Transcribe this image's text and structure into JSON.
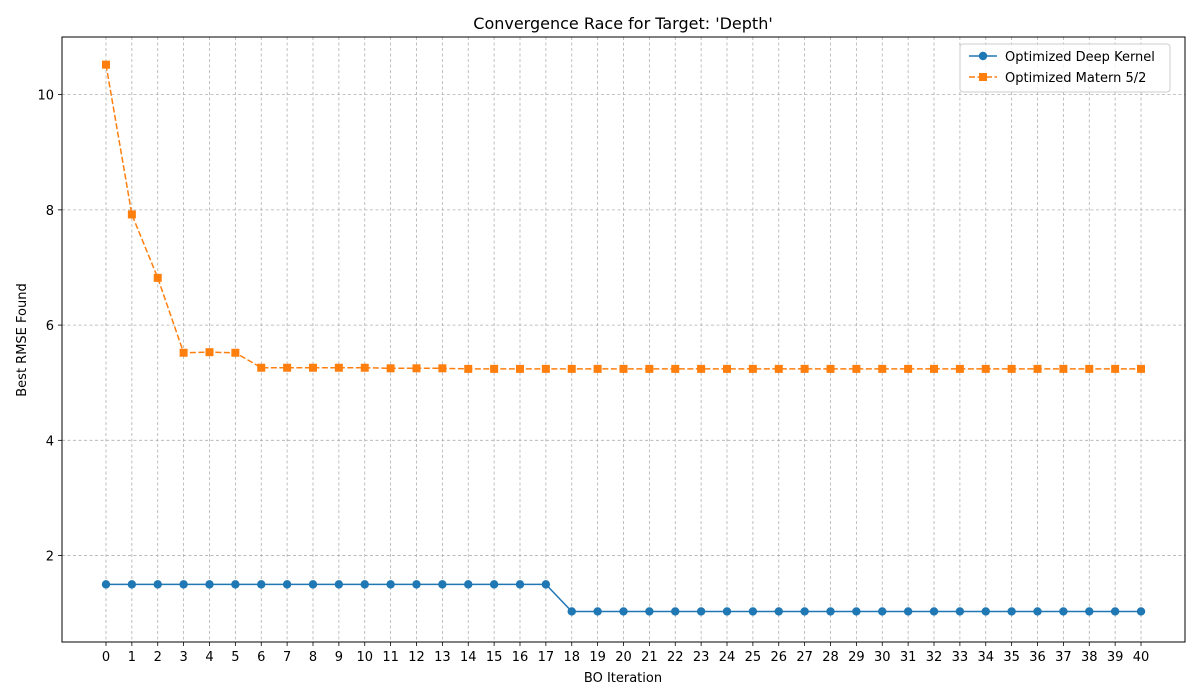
{
  "chart_data": {
    "type": "line",
    "title": "Convergence Race for Target: 'Depth'",
    "xlabel": "BO Iteration",
    "ylabel": "Best RMSE Found",
    "x": [
      0,
      1,
      2,
      3,
      4,
      5,
      6,
      7,
      8,
      9,
      10,
      11,
      12,
      13,
      14,
      15,
      16,
      17,
      18,
      19,
      20,
      21,
      22,
      23,
      24,
      25,
      26,
      27,
      28,
      29,
      30,
      31,
      32,
      33,
      34,
      35,
      36,
      37,
      38,
      39,
      40
    ],
    "xlim": [
      -1.7,
      41.7
    ],
    "ylim": [
      0.5,
      11.0
    ],
    "yticks": [
      2,
      4,
      6,
      8,
      10
    ],
    "grid": true,
    "legend_position": "top-right",
    "series": [
      {
        "name": "Optimized Deep Kernel",
        "color": "#1f77b4",
        "marker": "circle",
        "linestyle": "solid",
        "values": [
          1.5,
          1.5,
          1.5,
          1.5,
          1.5,
          1.5,
          1.5,
          1.5,
          1.5,
          1.5,
          1.5,
          1.5,
          1.5,
          1.5,
          1.5,
          1.5,
          1.5,
          1.5,
          1.03,
          1.03,
          1.03,
          1.03,
          1.03,
          1.03,
          1.03,
          1.03,
          1.03,
          1.03,
          1.03,
          1.03,
          1.03,
          1.03,
          1.03,
          1.03,
          1.03,
          1.03,
          1.03,
          1.03,
          1.03,
          1.03,
          1.03
        ]
      },
      {
        "name": "Optimized Matern 5/2",
        "color": "#ff7f0e",
        "marker": "square",
        "linestyle": "dashed",
        "values": [
          10.52,
          7.92,
          6.82,
          5.52,
          5.53,
          5.52,
          5.26,
          5.26,
          5.26,
          5.26,
          5.26,
          5.25,
          5.25,
          5.25,
          5.24,
          5.24,
          5.24,
          5.24,
          5.24,
          5.24,
          5.24,
          5.24,
          5.24,
          5.24,
          5.24,
          5.24,
          5.24,
          5.24,
          5.24,
          5.24,
          5.24,
          5.24,
          5.24,
          5.24,
          5.24,
          5.24,
          5.24,
          5.24,
          5.24,
          5.24,
          5.24
        ]
      }
    ]
  }
}
